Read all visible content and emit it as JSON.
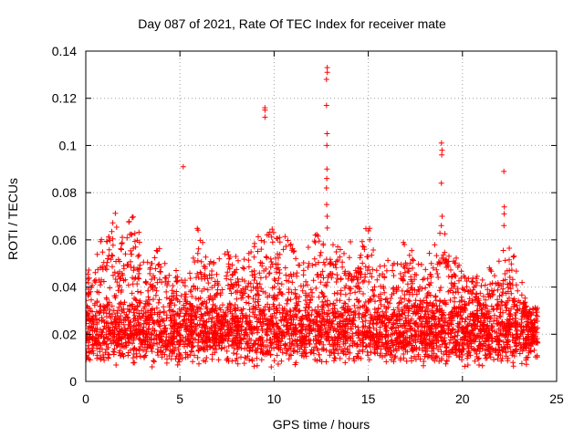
{
  "chart_data": {
    "type": "scatter",
    "title": "Day 087 of 2021, Rate Of TEC Index for receiver mate",
    "xlabel": "GPS time / hours",
    "ylabel": "ROTI / TECUs",
    "xlim": [
      0,
      25
    ],
    "ylim": [
      0,
      0.14
    ],
    "xticks": [
      0,
      5,
      10,
      15,
      20,
      25
    ],
    "yticks": [
      0,
      0.02,
      0.04,
      0.06,
      0.08,
      0.1,
      0.12,
      0.14
    ],
    "xtick_labels": [
      "0",
      "5",
      "10",
      "15",
      "20",
      "25"
    ],
    "ytick_labels": [
      "0",
      "0.02",
      "0.04",
      "0.06",
      "0.08",
      "0.1",
      "0.12",
      "0.14"
    ],
    "grid": true,
    "marker": "+",
    "color": "#ff0000",
    "data_extent": [
      0,
      24
    ],
    "typical_max_envelope": {
      "x": [
        0,
        0.5,
        1,
        1.5,
        2,
        2.5,
        3,
        3.5,
        4,
        4.5,
        5,
        5.5,
        6,
        6.5,
        7,
        7.5,
        8,
        8.5,
        9,
        9.5,
        10,
        10.5,
        11,
        11.5,
        12,
        12.5,
        13,
        13.5,
        14,
        14.5,
        15,
        15.5,
        16,
        16.5,
        17,
        17.5,
        18,
        18.5,
        19,
        19.5,
        20,
        20.5,
        21,
        21.5,
        22,
        22.5,
        23,
        23.5,
        24
      ],
      "y": [
        0.045,
        0.055,
        0.065,
        0.074,
        0.06,
        0.075,
        0.057,
        0.052,
        0.064,
        0.048,
        0.047,
        0.045,
        0.07,
        0.05,
        0.055,
        0.056,
        0.055,
        0.052,
        0.062,
        0.064,
        0.065,
        0.064,
        0.058,
        0.05,
        0.066,
        0.06,
        0.067,
        0.056,
        0.06,
        0.06,
        0.068,
        0.05,
        0.052,
        0.05,
        0.065,
        0.05,
        0.05,
        0.062,
        0.07,
        0.055,
        0.05,
        0.047,
        0.045,
        0.05,
        0.055,
        0.058,
        0.048,
        0.032,
        0.032
      ]
    },
    "spikes": [
      {
        "x": 5.2,
        "y": [
          0.091
        ]
      },
      {
        "x": 9.5,
        "y": [
          0.112,
          0.115,
          0.116
        ]
      },
      {
        "x": 12.8,
        "y": [
          0.065,
          0.07,
          0.075,
          0.082,
          0.086,
          0.09,
          0.1,
          0.105,
          0.117,
          0.128,
          0.131,
          0.133
        ]
      },
      {
        "x": 18.9,
        "y": [
          0.066,
          0.07,
          0.084,
          0.096,
          0.098,
          0.101
        ]
      },
      {
        "x": 22.2,
        "y": [
          0.066,
          0.071,
          0.074,
          0.089
        ]
      }
    ]
  }
}
